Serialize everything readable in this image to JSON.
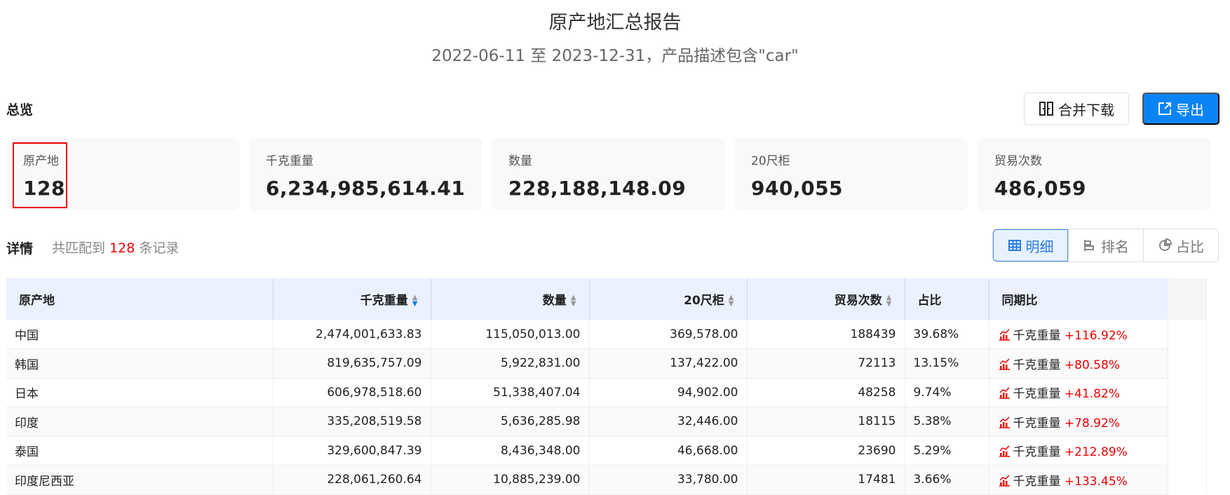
{
  "header": {
    "title": "原产地汇总报告",
    "subtitle": "2022-06-11 至 2023-12-31，产品描述包含\"car\""
  },
  "overview": {
    "label": "总览",
    "merge_download": "合并下载",
    "export": "导出",
    "cards": [
      {
        "label": "原产地",
        "value": "128"
      },
      {
        "label": "千克重量",
        "value": "6,234,985,614.41"
      },
      {
        "label": "数量",
        "value": "228,188,148.09"
      },
      {
        "label": "20尺柜",
        "value": "940,055"
      },
      {
        "label": "贸易次数",
        "value": "486,059"
      }
    ]
  },
  "details": {
    "label": "详情",
    "prefix": "共匹配到",
    "count": "128",
    "suffix": "条记录",
    "views": [
      {
        "label": "明细",
        "icon": "table-icon"
      },
      {
        "label": "排名",
        "icon": "bar-rank-icon"
      },
      {
        "label": "占比",
        "icon": "pie-icon"
      }
    ]
  },
  "accent": "#0a84f5",
  "table": {
    "columns": [
      "原产地",
      "千克重量",
      "数量",
      "20尺柜",
      "贸易次数",
      "占比",
      "同期比"
    ],
    "sorted_column": "千克重量",
    "sort_direction": "desc",
    "rows": [
      [
        "中国",
        "2,474,001,633.83",
        "115,050,013.00",
        "369,578.00",
        "188439",
        "39.68%",
        "千克重量",
        "+116.92%"
      ],
      [
        "韩国",
        "819,635,757.09",
        "5,922,831.00",
        "137,422.00",
        "72113",
        "13.15%",
        "千克重量",
        "+80.58%"
      ],
      [
        "日本",
        "606,978,518.60",
        "51,338,407.04",
        "94,902.00",
        "48258",
        "9.74%",
        "千克重量",
        "+41.82%"
      ],
      [
        "印度",
        "335,208,519.58",
        "5,636,285.98",
        "32,446.00",
        "18115",
        "5.38%",
        "千克重量",
        "+78.92%"
      ],
      [
        "泰国",
        "329,600,847.39",
        "8,436,348.00",
        "46,668.00",
        "23690",
        "5.29%",
        "千克重量",
        "+212.89%"
      ],
      [
        "印度尼西亚",
        "228,061,260.64",
        "10,885,239.00",
        "33,780.00",
        "17481",
        "3.66%",
        "千克重量",
        "+133.45%"
      ]
    ]
  }
}
